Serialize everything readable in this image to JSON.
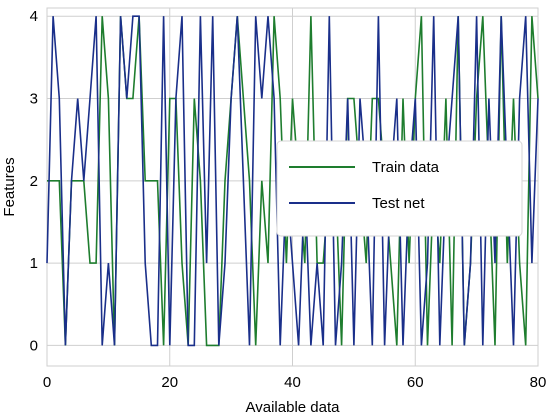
{
  "chart_data": {
    "type": "line",
    "xlabel": "Available data",
    "ylabel": "Features",
    "xlim": [
      0,
      80
    ],
    "ylim": [
      -0.25,
      4.1
    ],
    "xticks": [
      "0",
      "20",
      "40",
      "60",
      "80"
    ],
    "yticks": [
      "0",
      "1",
      "2",
      "3",
      "4"
    ],
    "grid": true,
    "legend_position": "center-right",
    "series": [
      {
        "name": "Train data",
        "color": "#1e7d2e",
        "x": [
          0,
          1,
          2,
          3,
          4,
          5,
          6,
          7,
          8,
          9,
          10,
          11,
          12,
          13,
          14,
          15,
          16,
          17,
          18,
          19,
          20,
          21,
          22,
          23,
          24,
          25,
          26,
          27,
          28,
          29,
          30,
          31,
          32,
          33,
          34,
          35,
          36,
          37,
          38,
          39,
          40,
          41,
          42,
          43,
          44,
          45,
          46,
          47,
          48,
          49,
          50,
          51,
          52,
          53,
          54,
          55,
          56,
          57,
          58,
          59,
          60,
          61,
          62,
          63,
          64,
          65,
          66,
          67,
          68,
          69,
          70,
          71,
          72,
          73,
          74,
          75,
          76,
          77,
          78,
          79,
          80
        ],
        "values": [
          2,
          2,
          2,
          0,
          2,
          2,
          2,
          1,
          1,
          4,
          3,
          0,
          4,
          3,
          3,
          4,
          2,
          2,
          2,
          0,
          3,
          3,
          1,
          0,
          3,
          2,
          0,
          0,
          0,
          2,
          3,
          4,
          3,
          2,
          0,
          2,
          1,
          4,
          3,
          1,
          3,
          2,
          1,
          4,
          1,
          1,
          2,
          2,
          0,
          3,
          3,
          2,
          1,
          3,
          3,
          2,
          1,
          0,
          3,
          1,
          3,
          4,
          0,
          2,
          1,
          3,
          0,
          4,
          0,
          1,
          3,
          4,
          2,
          0,
          4,
          1,
          3,
          1,
          0,
          4,
          3
        ]
      },
      {
        "name": "Test net",
        "color": "#1a2f8a",
        "x": [
          0,
          1,
          2,
          3,
          4,
          5,
          6,
          7,
          8,
          9,
          10,
          11,
          12,
          13,
          14,
          15,
          16,
          17,
          18,
          19,
          20,
          21,
          22,
          23,
          24,
          25,
          26,
          27,
          28,
          29,
          30,
          31,
          32,
          33,
          34,
          35,
          36,
          37,
          38,
          39,
          40,
          41,
          42,
          43,
          44,
          45,
          46,
          47,
          48,
          49,
          50,
          51,
          52,
          53,
          54,
          55,
          56,
          57,
          58,
          59,
          60,
          61,
          62,
          63,
          64,
          65,
          66,
          67,
          68,
          69,
          70,
          71,
          72,
          73,
          74,
          75,
          76,
          77,
          78,
          79,
          80
        ],
        "values": [
          1,
          4,
          3,
          0,
          2,
          3,
          2,
          3,
          4,
          0,
          1,
          0,
          4,
          3,
          4,
          4,
          1,
          0,
          0,
          4,
          0,
          3,
          4,
          0,
          0,
          4,
          1,
          4,
          0,
          1,
          3,
          4,
          2,
          0,
          4,
          3,
          4,
          3,
          0,
          2,
          1,
          0,
          2,
          0,
          1,
          0,
          4,
          0,
          1,
          3,
          0,
          3,
          2,
          0,
          4,
          0,
          2,
          3,
          0,
          2,
          3,
          0,
          1,
          4,
          0,
          2,
          3,
          4,
          0,
          1,
          4,
          0,
          3,
          1,
          4,
          2,
          0,
          3,
          4,
          1,
          3
        ]
      }
    ]
  }
}
